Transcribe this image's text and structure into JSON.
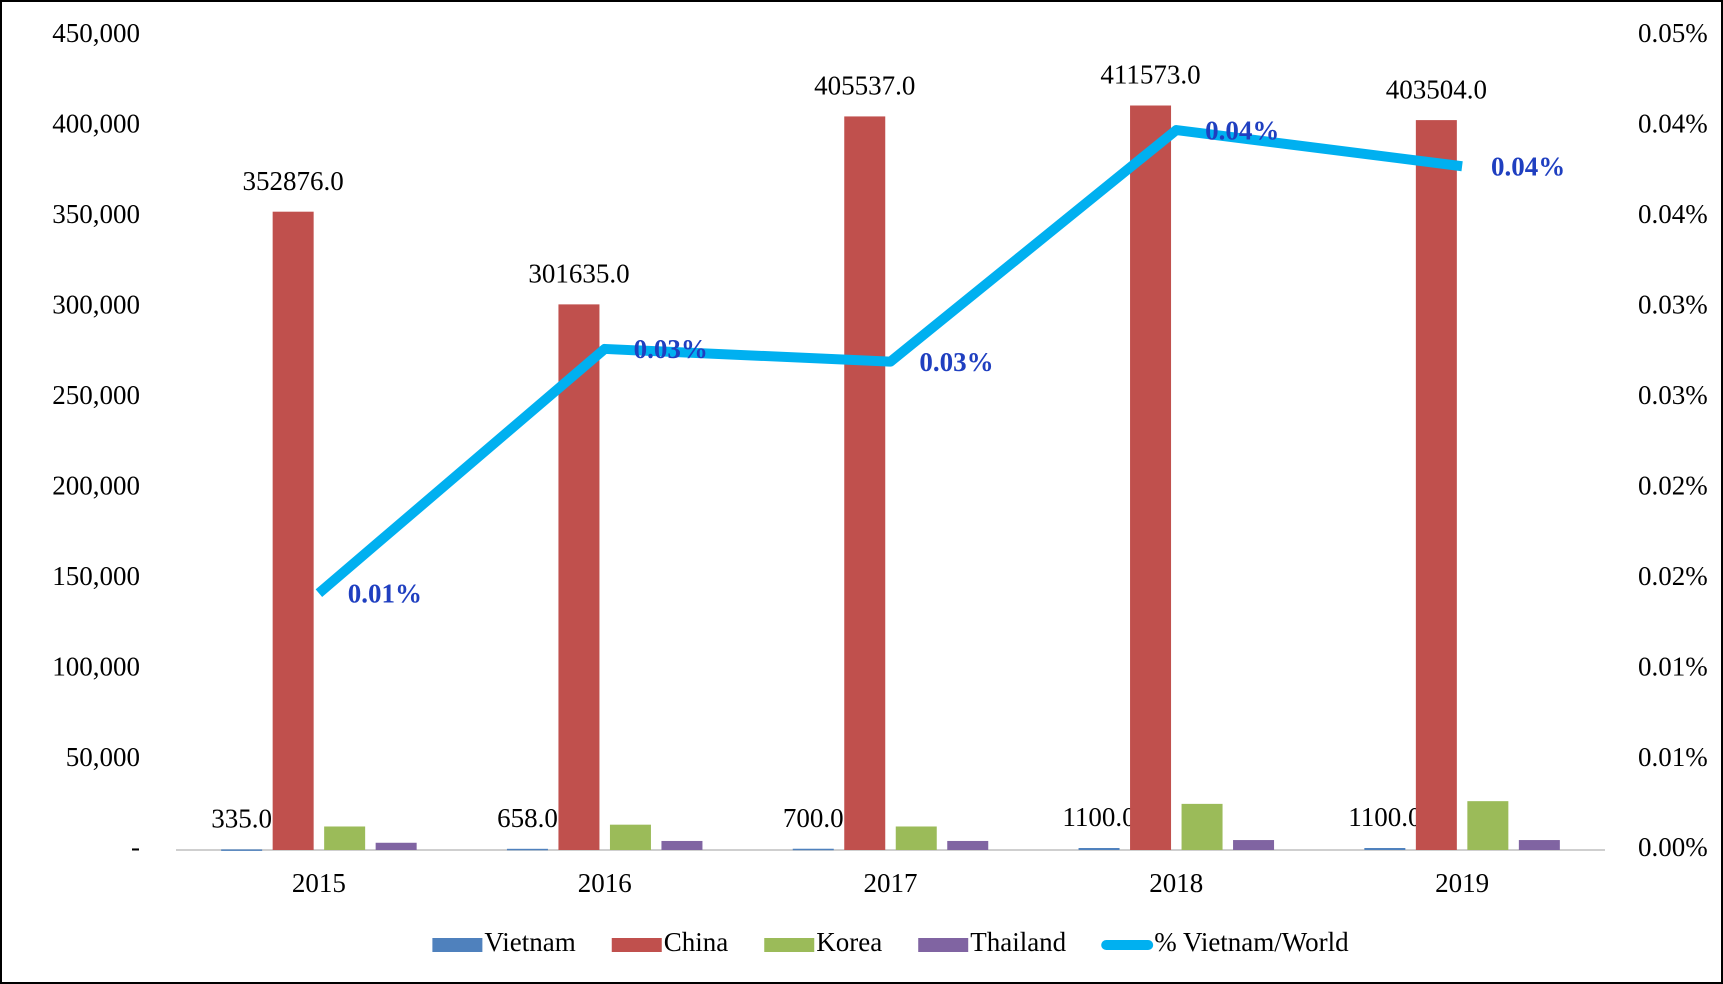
{
  "chart_data": {
    "type": "bar",
    "categories": [
      "2015",
      "2016",
      "2017",
      "2018",
      "2019"
    ],
    "series": [
      {
        "name": "Vietnam",
        "color": "#4f81bd",
        "values": [
          335,
          658,
          700,
          1100,
          1100
        ],
        "value_labels": [
          "335.0",
          "658.0",
          "700.0",
          "1100.0",
          "1100.0"
        ]
      },
      {
        "name": "China",
        "color": "#c0504d",
        "values": [
          352876,
          301635,
          405537,
          411573,
          403504
        ],
        "value_labels": [
          "352876.0",
          "301635.0",
          "405537.0",
          "411573.0",
          "403504.0"
        ]
      },
      {
        "name": "Korea",
        "color": "#9bbb59",
        "values": [
          13000,
          14000,
          13000,
          25500,
          27000
        ]
      },
      {
        "name": "Thailand",
        "color": "#8064a2",
        "values": [
          4000,
          5000,
          5000,
          5500,
          5500
        ]
      },
      {
        "name": "% Vietnam/World",
        "type": "line",
        "axis": "y2",
        "color": "#00b0f0",
        "label_color": "#1f3fc0",
        "values": [
          0.0142,
          0.0277,
          0.027,
          0.0398,
          0.0378
        ],
        "value_labels": [
          "0.01%",
          "0.03%",
          "0.03%",
          "0.04%",
          "0.04%"
        ]
      }
    ],
    "ylim": [
      0,
      450000
    ],
    "yticks": [
      {
        "value": 0,
        "label": "-"
      },
      {
        "value": 50000,
        "label": "50,000"
      },
      {
        "value": 100000,
        "label": "100,000"
      },
      {
        "value": 150000,
        "label": "150,000"
      },
      {
        "value": 200000,
        "label": "200,000"
      },
      {
        "value": 250000,
        "label": "250,000"
      },
      {
        "value": 300000,
        "label": "300,000"
      },
      {
        "value": 350000,
        "label": "350,000"
      },
      {
        "value": 400000,
        "label": "400,000"
      },
      {
        "value": 450000,
        "label": "450,000"
      }
    ],
    "y2lim": [
      0,
      0.045
    ],
    "y2ticks": [
      {
        "value": 0,
        "label": "0.00%"
      },
      {
        "value": 0.005,
        "label": "0.01%"
      },
      {
        "value": 0.01,
        "label": "0.01%"
      },
      {
        "value": 0.015,
        "label": "0.02%"
      },
      {
        "value": 0.02,
        "label": "0.02%"
      },
      {
        "value": 0.025,
        "label": "0.03%"
      },
      {
        "value": 0.03,
        "label": "0.03%"
      },
      {
        "value": 0.035,
        "label": "0.04%"
      },
      {
        "value": 0.04,
        "label": "0.04%"
      },
      {
        "value": 0.045,
        "label": "0.05%"
      }
    ],
    "grid": false,
    "legend": "bottom"
  }
}
